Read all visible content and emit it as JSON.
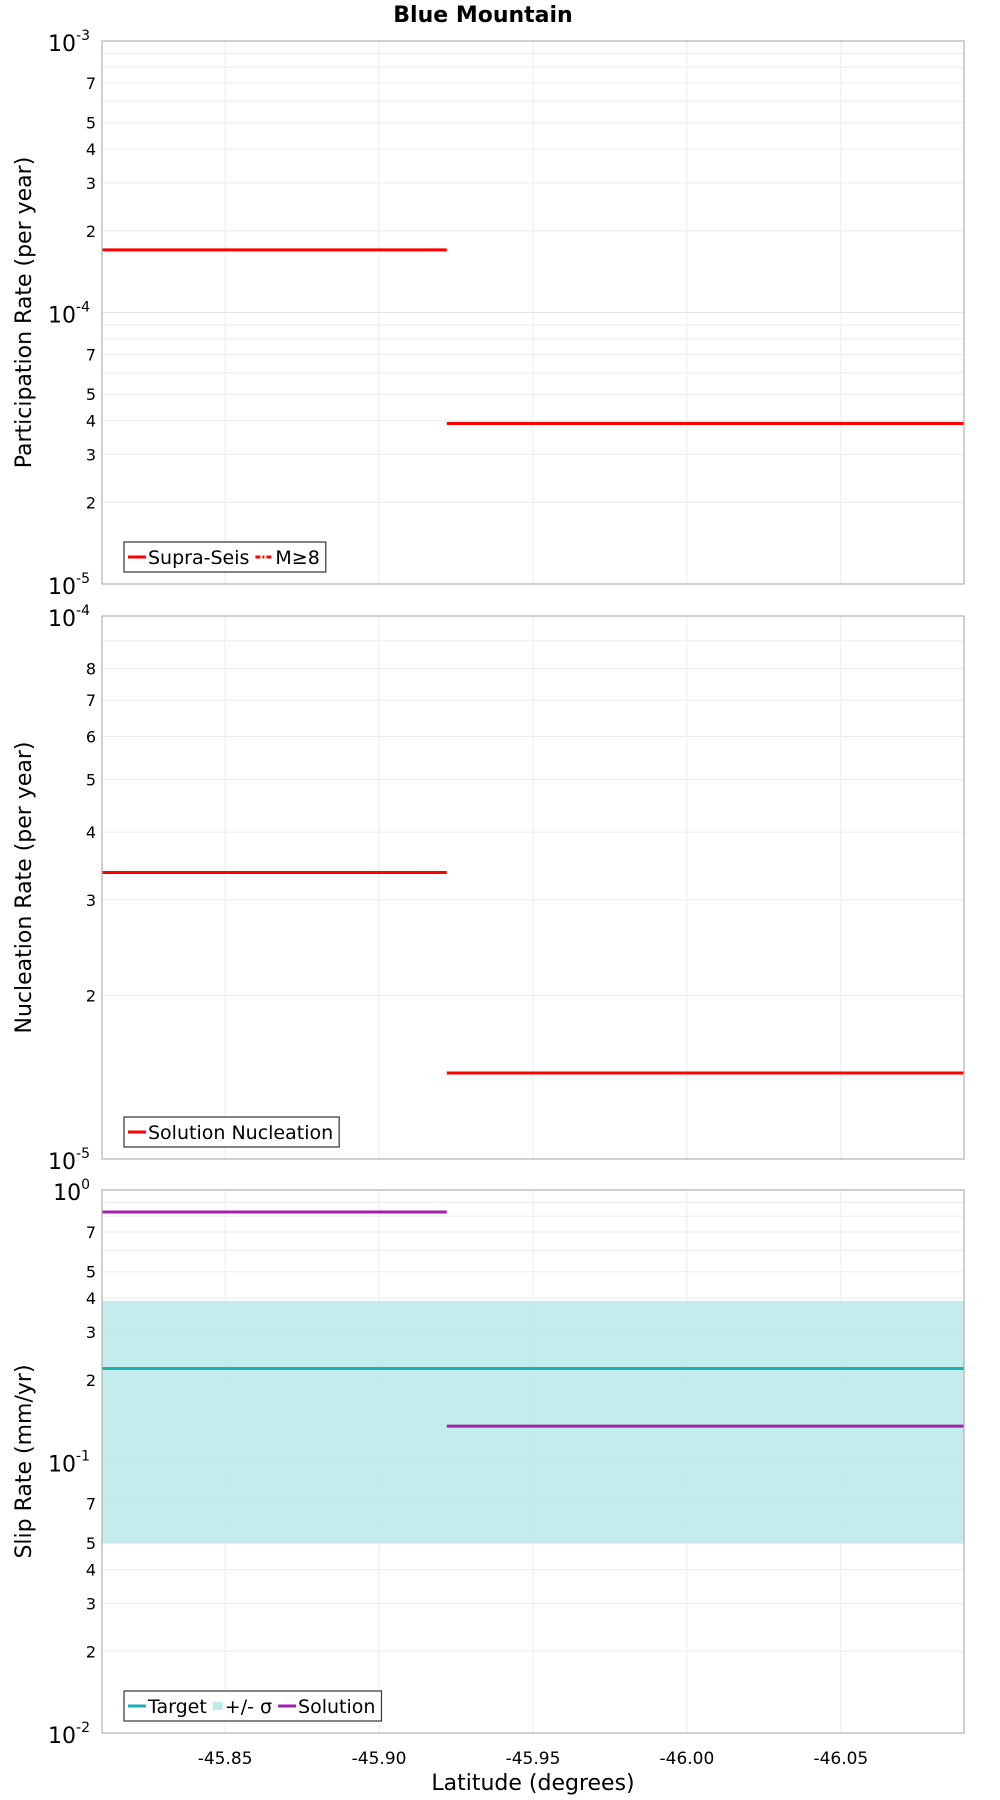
{
  "title": "Blue Mountain",
  "xlabel": "Latitude (degrees)",
  "colors": {
    "red": "#ff0000",
    "teal": "#18b2b2",
    "band": "#bfeaea",
    "purple": "#a020b0"
  },
  "chart_data": [
    {
      "type": "line",
      "title": "Blue Mountain",
      "ylabel": "Participation Rate (per year)",
      "yscale": "log",
      "ylim": [
        1e-05,
        0.001
      ],
      "xlim": [
        -45.81,
        -46.09
      ],
      "x_ticks": [
        -45.85,
        -45.9,
        -45.95,
        -46.0,
        -46.05
      ],
      "x_tick_labels": [
        "-45.85",
        "-45.90",
        "-45.95",
        "-46.00",
        "-46.05"
      ],
      "y_major_ticks": [
        {
          "base": "10",
          "exp": "-3"
        },
        {
          "base": "10",
          "exp": "-4"
        },
        {
          "base": "10",
          "exp": "-5"
        }
      ],
      "y_minor_tick_labels": [
        "7",
        "5",
        "4",
        "3",
        "2",
        "7",
        "5",
        "4",
        "3",
        "2"
      ],
      "series": [
        {
          "name": "Supra-Seis",
          "style": "solid",
          "color": "#ff0000",
          "segments": [
            {
              "x": [
                -45.81,
                -45.922
              ],
              "y": 0.00017
            },
            {
              "x": [
                -45.922,
                -46.09
              ],
              "y": 3.9e-05
            }
          ]
        },
        {
          "name": "M≥8",
          "style": "dash-dot",
          "color": "#ff0000",
          "segments": []
        }
      ],
      "legend": {
        "position": "bottom-left",
        "entries": [
          "Supra-Seis",
          "M≥8"
        ]
      }
    },
    {
      "type": "line",
      "ylabel": "Nucleation Rate (per year)",
      "yscale": "log",
      "ylim": [
        1e-05,
        0.0001
      ],
      "xlim": [
        -45.81,
        -46.09
      ],
      "x_ticks": [
        -45.85,
        -45.9,
        -45.95,
        -46.0,
        -46.05
      ],
      "x_tick_labels": [
        "-45.85",
        "-45.90",
        "-45.95",
        "-46.00",
        "-46.05"
      ],
      "y_major_ticks": [
        {
          "base": "10",
          "exp": "-4"
        },
        {
          "base": "10",
          "exp": "-5"
        }
      ],
      "y_minor_tick_labels": [
        "8",
        "7",
        "6",
        "5",
        "4",
        "3",
        "2"
      ],
      "series": [
        {
          "name": "Solution Nucleation",
          "style": "solid",
          "color": "#ff0000",
          "segments": [
            {
              "x": [
                -45.81,
                -45.922
              ],
              "y": 3.37e-05
            },
            {
              "x": [
                -45.922,
                -46.09
              ],
              "y": 1.44e-05
            }
          ]
        }
      ],
      "legend": {
        "position": "bottom-left",
        "entries": [
          "Solution Nucleation"
        ]
      }
    },
    {
      "type": "line",
      "ylabel": "Slip Rate (mm/yr)",
      "yscale": "log",
      "ylim": [
        0.01,
        1
      ],
      "xlim": [
        -45.81,
        -46.09
      ],
      "x_ticks": [
        -45.85,
        -45.9,
        -45.95,
        -46.0,
        -46.05
      ],
      "x_tick_labels": [
        "-45.85",
        "-45.90",
        "-45.95",
        "-46.00",
        "-46.05"
      ],
      "y_major_ticks": [
        {
          "base": "10",
          "exp": "0"
        },
        {
          "base": "10",
          "exp": "-1"
        },
        {
          "base": "10",
          "exp": "-2"
        }
      ],
      "y_minor_tick_labels": [
        "7",
        "5",
        "4",
        "3",
        "2",
        "7",
        "5",
        "4",
        "3",
        "2"
      ],
      "band": {
        "name": "+/- σ",
        "x": [
          -45.81,
          -46.09
        ],
        "y_low": 0.05,
        "y_high": 0.39,
        "color": "#bfeaea"
      },
      "series": [
        {
          "name": "Target",
          "style": "solid",
          "color": "#18b2b2",
          "segments": [
            {
              "x": [
                -45.81,
                -46.09
              ],
              "y": 0.22
            }
          ]
        },
        {
          "name": "Solution",
          "style": "solid",
          "color": "#a020b0",
          "segments": [
            {
              "x": [
                -45.81,
                -45.922
              ],
              "y": 0.83
            },
            {
              "x": [
                -45.922,
                -46.09
              ],
              "y": 0.135
            }
          ]
        }
      ],
      "legend": {
        "position": "bottom-left",
        "entries": [
          "Target",
          "+/- σ",
          "Solution"
        ]
      }
    }
  ]
}
